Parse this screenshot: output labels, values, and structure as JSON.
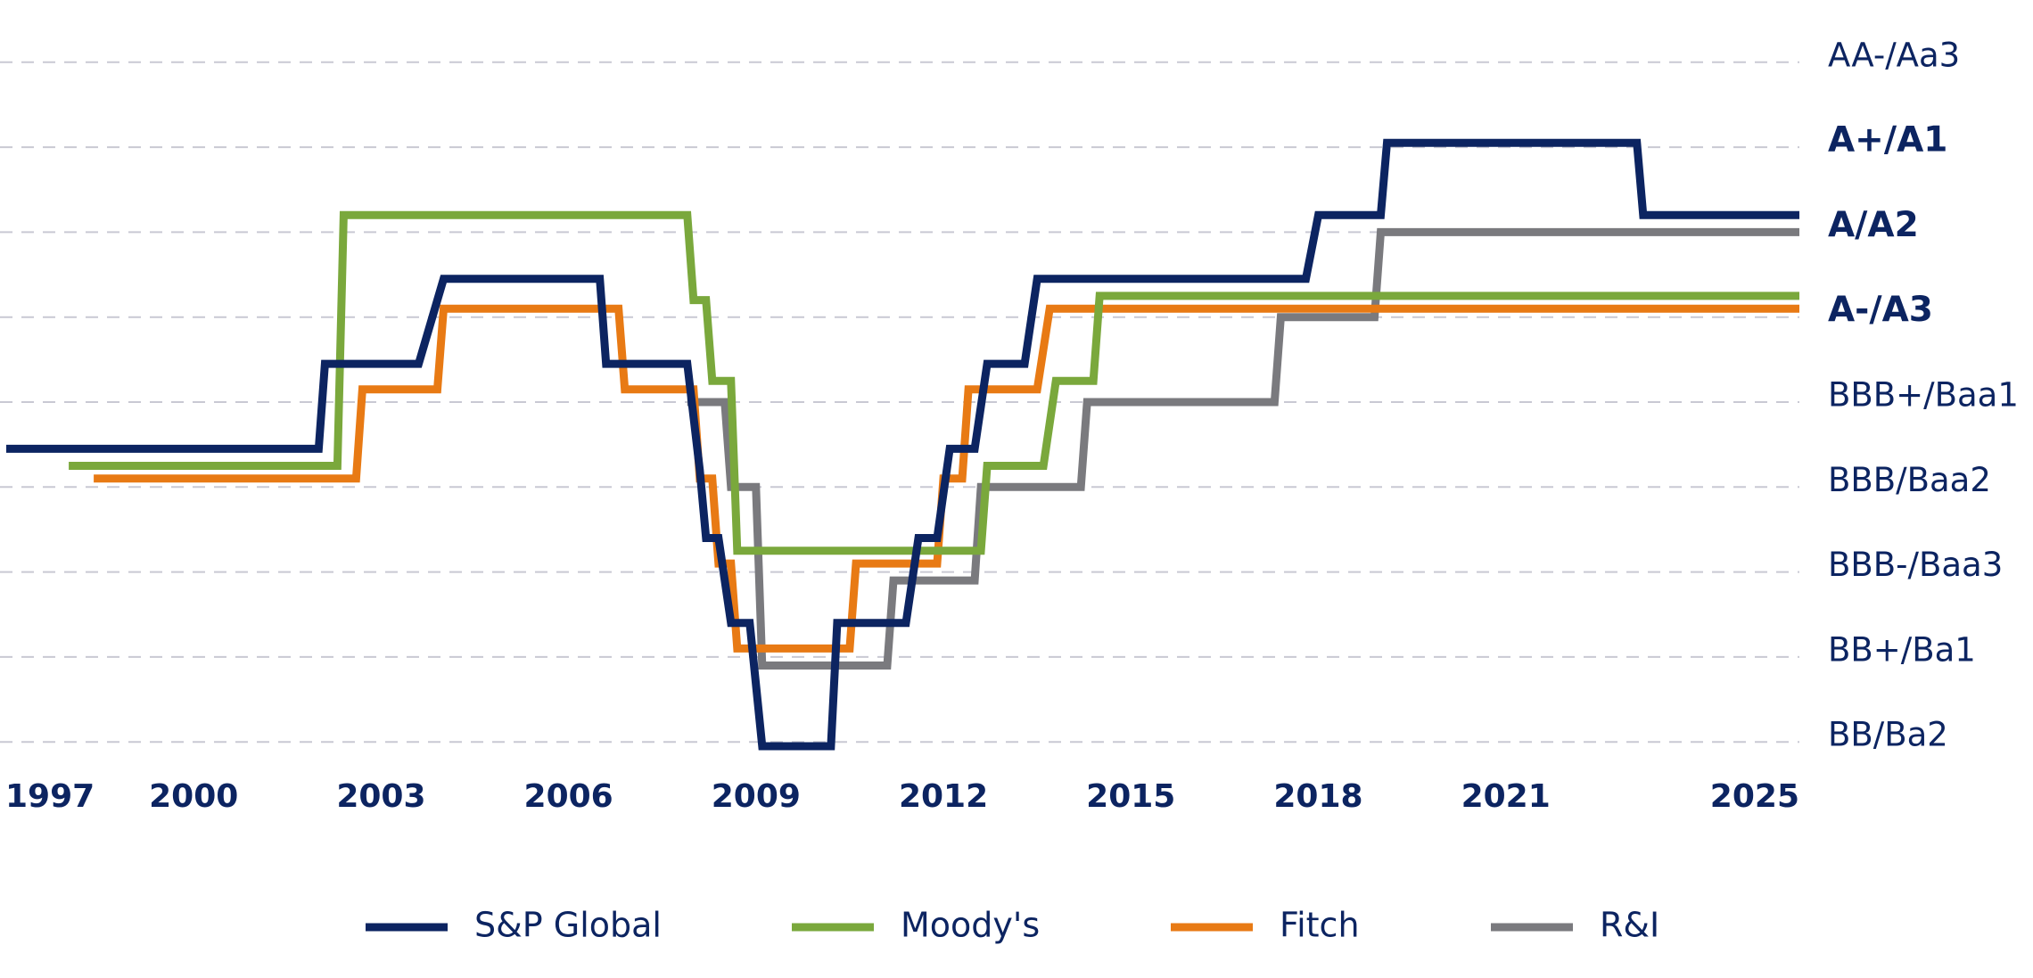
{
  "chart_data": {
    "type": "line",
    "step": true,
    "grid": true,
    "legend_position": "bottom",
    "x_ticks": [
      "1997",
      "2000",
      "2003",
      "2006",
      "2009",
      "2012",
      "2015",
      "2018",
      "2021",
      "2025"
    ],
    "xlim": [
      1996.9,
      2025.7
    ],
    "y_levels": [
      {
        "label": "BB/Ba2",
        "value": 1,
        "bold": false
      },
      {
        "label": "BB+/Ba1",
        "value": 2,
        "bold": false
      },
      {
        "label": "BBB-/Baa3",
        "value": 3,
        "bold": false
      },
      {
        "label": "BBB/Baa2",
        "value": 4,
        "bold": false
      },
      {
        "label": "BBB+/Baa1",
        "value": 5,
        "bold": false
      },
      {
        "label": "A-/A3",
        "value": 6,
        "bold": true
      },
      {
        "label": "A/A2",
        "value": 7,
        "bold": true
      },
      {
        "label": "A+/A1",
        "value": 8,
        "bold": true
      },
      {
        "label": "AA-/Aa3",
        "value": 9,
        "bold": false
      }
    ],
    "ylim": [
      0.95,
      9.05
    ],
    "series": [
      {
        "name": "S&P Global",
        "color": "#0c2461",
        "x": [
          1997.0,
          2002.0,
          2002.1,
          2003.6,
          2004.0,
          2006.5,
          2006.6,
          2007.9,
          2008.1,
          2008.2,
          2008.4,
          2008.6,
          2008.9,
          2009.1,
          2010.2,
          2010.3,
          2011.4,
          2011.6,
          2011.9,
          2012.1,
          2012.5,
          2012.7,
          2013.3,
          2013.5,
          2017.8,
          2018.0,
          2019.0,
          2019.1,
          2023.1,
          2023.2,
          2025.7
        ],
        "y": [
          4.45,
          4.45,
          5.45,
          5.45,
          6.45,
          6.45,
          5.45,
          5.45,
          4.2,
          3.4,
          3.4,
          2.4,
          2.4,
          0.95,
          0.95,
          2.4,
          2.4,
          3.4,
          3.4,
          4.45,
          4.45,
          5.45,
          5.45,
          6.45,
          6.45,
          7.2,
          7.2,
          8.05,
          8.05,
          7.2,
          7.2
        ]
      },
      {
        "name": "Moody's",
        "color": "#7aa83c",
        "x": [
          1998.0,
          2002.3,
          2002.4,
          2007.9,
          2008.0,
          2008.2,
          2008.3,
          2008.6,
          2008.7,
          2012.6,
          2012.7,
          2013.6,
          2013.8,
          2014.4,
          2014.5,
          2025.7
        ],
        "y": [
          4.25,
          4.25,
          7.2,
          7.2,
          6.2,
          6.2,
          5.25,
          5.25,
          3.25,
          3.25,
          4.25,
          4.25,
          5.25,
          5.25,
          6.25,
          6.25
        ]
      },
      {
        "name": "Fitch",
        "color": "#e87a14",
        "x": [
          1998.4,
          2002.6,
          2002.7,
          2003.9,
          2004.0,
          2006.8,
          2006.9,
          2008.0,
          2008.1,
          2008.3,
          2008.4,
          2008.6,
          2008.7,
          2010.5,
          2010.6,
          2011.9,
          2012.0,
          2012.3,
          2012.4,
          2013.5,
          2013.7,
          2025.7
        ],
        "y": [
          4.1,
          4.1,
          5.15,
          5.15,
          6.1,
          6.1,
          5.15,
          5.15,
          4.1,
          4.1,
          3.1,
          3.1,
          2.1,
          2.1,
          3.1,
          3.1,
          4.1,
          4.1,
          5.15,
          5.15,
          6.1,
          6.1
        ]
      },
      {
        "name": "R&I",
        "color": "#7a7a7e",
        "x": [
          2007.9,
          2008.5,
          2008.6,
          2009.0,
          2009.1,
          2011.1,
          2011.2,
          2012.5,
          2012.6,
          2014.2,
          2014.3,
          2017.3,
          2017.4,
          2018.9,
          2019.0,
          2025.7
        ],
        "y": [
          5.0,
          5.0,
          4.0,
          4.0,
          1.9,
          1.9,
          2.9,
          2.9,
          4.0,
          4.0,
          5.0,
          5.0,
          6.0,
          6.0,
          7.0,
          7.0
        ]
      }
    ]
  }
}
